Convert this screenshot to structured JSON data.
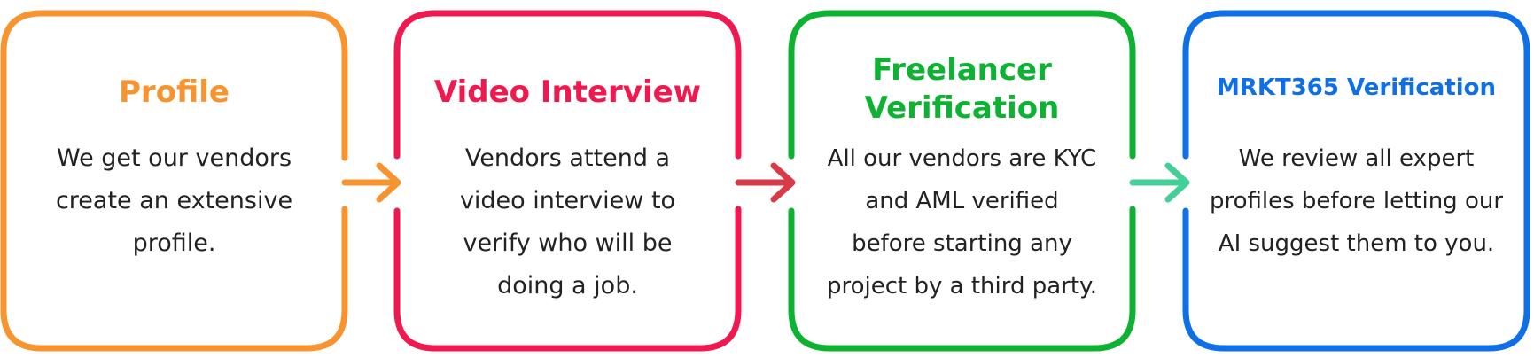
{
  "steps": [
    {
      "title": [
        "Profile"
      ],
      "description": [
        "We get our vendors",
        "create an extensive",
        "profile."
      ],
      "color": "#f7942f"
    },
    {
      "title": [
        "Video Interview"
      ],
      "description": [
        "Vendors attend a",
        "video interview to",
        "verify who will be",
        "doing a job."
      ],
      "color": "#ef1950"
    },
    {
      "title": [
        "Freelancer",
        "Verification"
      ],
      "description": [
        "All our vendors are KYC",
        "and AML verified",
        "before starting any",
        "project by a third party."
      ],
      "color": "#0db232"
    },
    {
      "title": [
        "MRKT365 Verification"
      ],
      "description": [
        "We review all expert",
        "profiles before letting our",
        "AI suggest them to you."
      ],
      "color": "#0f6fe6"
    }
  ],
  "connectors": [
    {
      "from": "Profile",
      "to": "Video Interview",
      "icon": "arrow-right-icon",
      "color": "#f7942f"
    },
    {
      "from": "Video Interview",
      "to": "Freelancer Verification",
      "icon": "arrow-right-icon",
      "color": "#d93a48"
    },
    {
      "from": "Freelancer Verification",
      "to": "MRKT365 Verification",
      "icon": "arrow-right-icon",
      "color": "#45cf98"
    }
  ]
}
